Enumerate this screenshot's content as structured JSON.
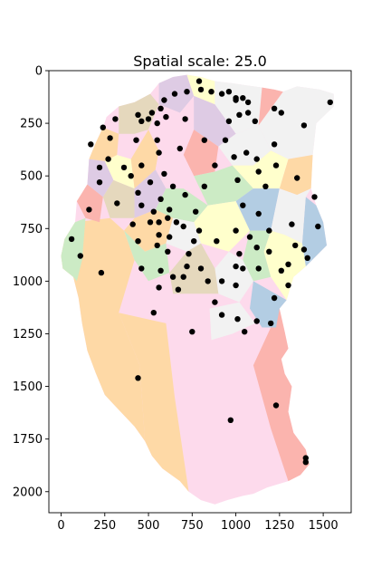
{
  "chart_data": {
    "type": "scatter",
    "title": "Spatial scale: 25.0",
    "xlabel": "",
    "ylabel": "",
    "xlim": [
      -70,
      1660
    ],
    "ylim": [
      2100,
      0
    ],
    "y_inverted": true,
    "grid": false,
    "xticks": [
      0,
      250,
      500,
      750,
      1000,
      1250,
      1500
    ],
    "yticks": [
      0,
      250,
      500,
      750,
      1000,
      1250,
      1500,
      1750,
      2000
    ],
    "xtick_labels": [
      "0",
      "250",
      "500",
      "750",
      "1000",
      "1250",
      "1500"
    ],
    "ytick_labels": [
      "0",
      "250",
      "500",
      "750",
      "1000",
      "1250",
      "1500",
      "1750",
      "2000"
    ],
    "point_color": "#000000",
    "region_palette": [
      "#fbb4ae",
      "#b3cde3",
      "#ccebc5",
      "#decbe4",
      "#fed9a6",
      "#ffffcc",
      "#e5d8bd",
      "#fddaec",
      "#f2f2f2"
    ],
    "points": [
      {
        "x": 1540,
        "y": 150
      },
      {
        "x": 1390,
        "y": 260
      },
      {
        "x": 1260,
        "y": 200
      },
      {
        "x": 1220,
        "y": 180
      },
      {
        "x": 1110,
        "y": 240
      },
      {
        "x": 1070,
        "y": 150
      },
      {
        "x": 1040,
        "y": 130
      },
      {
        "x": 1000,
        "y": 140
      },
      {
        "x": 960,
        "y": 100
      },
      {
        "x": 920,
        "y": 110
      },
      {
        "x": 860,
        "y": 100
      },
      {
        "x": 800,
        "y": 90
      },
      {
        "x": 790,
        "y": 50
      },
      {
        "x": 720,
        "y": 100
      },
      {
        "x": 650,
        "y": 110
      },
      {
        "x": 590,
        "y": 140
      },
      {
        "x": 570,
        "y": 180
      },
      {
        "x": 520,
        "y": 200
      },
      {
        "x": 500,
        "y": 230
      },
      {
        "x": 600,
        "y": 220
      },
      {
        "x": 550,
        "y": 250
      },
      {
        "x": 440,
        "y": 210
      },
      {
        "x": 310,
        "y": 230
      },
      {
        "x": 240,
        "y": 270
      },
      {
        "x": 280,
        "y": 320
      },
      {
        "x": 170,
        "y": 350
      },
      {
        "x": 460,
        "y": 240
      },
      {
        "x": 710,
        "y": 230
      },
      {
        "x": 960,
        "y": 240
      },
      {
        "x": 1020,
        "y": 210
      },
      {
        "x": 1070,
        "y": 200
      },
      {
        "x": 1000,
        "y": 130
      },
      {
        "x": 430,
        "y": 330
      },
      {
        "x": 550,
        "y": 330
      },
      {
        "x": 680,
        "y": 370
      },
      {
        "x": 820,
        "y": 330
      },
      {
        "x": 940,
        "y": 330
      },
      {
        "x": 1120,
        "y": 420
      },
      {
        "x": 1220,
        "y": 350
      },
      {
        "x": 1060,
        "y": 390
      },
      {
        "x": 990,
        "y": 410
      },
      {
        "x": 880,
        "y": 450
      },
      {
        "x": 560,
        "y": 390
      },
      {
        "x": 460,
        "y": 450
      },
      {
        "x": 590,
        "y": 490
      },
      {
        "x": 360,
        "y": 460
      },
      {
        "x": 400,
        "y": 500
      },
      {
        "x": 270,
        "y": 420
      },
      {
        "x": 220,
        "y": 460
      },
      {
        "x": 220,
        "y": 530
      },
      {
        "x": 1130,
        "y": 480
      },
      {
        "x": 1230,
        "y": 450
      },
      {
        "x": 1350,
        "y": 510
      },
      {
        "x": 1010,
        "y": 520
      },
      {
        "x": 1170,
        "y": 550
      },
      {
        "x": 820,
        "y": 550
      },
      {
        "x": 510,
        "y": 530
      },
      {
        "x": 640,
        "y": 550
      },
      {
        "x": 710,
        "y": 590
      },
      {
        "x": 570,
        "y": 610
      },
      {
        "x": 440,
        "y": 580
      },
      {
        "x": 320,
        "y": 630
      },
      {
        "x": 160,
        "y": 660
      },
      {
        "x": 460,
        "y": 640
      },
      {
        "x": 530,
        "y": 670
      },
      {
        "x": 620,
        "y": 660
      },
      {
        "x": 770,
        "y": 670
      },
      {
        "x": 1040,
        "y": 640
      },
      {
        "x": 1130,
        "y": 680
      },
      {
        "x": 1450,
        "y": 600
      },
      {
        "x": 1470,
        "y": 740
      },
      {
        "x": 1320,
        "y": 730
      },
      {
        "x": 1190,
        "y": 760
      },
      {
        "x": 1080,
        "y": 790
      },
      {
        "x": 410,
        "y": 730
      },
      {
        "x": 510,
        "y": 720
      },
      {
        "x": 560,
        "y": 720
      },
      {
        "x": 610,
        "y": 700
      },
      {
        "x": 660,
        "y": 720
      },
      {
        "x": 700,
        "y": 740
      },
      {
        "x": 790,
        "y": 760
      },
      {
        "x": 1000,
        "y": 760
      },
      {
        "x": 1120,
        "y": 840
      },
      {
        "x": 1340,
        "y": 830
      },
      {
        "x": 1390,
        "y": 850
      },
      {
        "x": 1410,
        "y": 890
      },
      {
        "x": 1190,
        "y": 860
      },
      {
        "x": 1300,
        "y": 920
      },
      {
        "x": 1260,
        "y": 950
      },
      {
        "x": 1300,
        "y": 1020
      },
      {
        "x": 1220,
        "y": 1080
      },
      {
        "x": 560,
        "y": 780
      },
      {
        "x": 620,
        "y": 790
      },
      {
        "x": 550,
        "y": 830
      },
      {
        "x": 440,
        "y": 810
      },
      {
        "x": 760,
        "y": 810
      },
      {
        "x": 890,
        "y": 810
      },
      {
        "x": 610,
        "y": 860
      },
      {
        "x": 730,
        "y": 870
      },
      {
        "x": 1020,
        "y": 870
      },
      {
        "x": 60,
        "y": 800
      },
      {
        "x": 110,
        "y": 880
      },
      {
        "x": 460,
        "y": 940
      },
      {
        "x": 570,
        "y": 950
      },
      {
        "x": 720,
        "y": 930
      },
      {
        "x": 640,
        "y": 980
      },
      {
        "x": 800,
        "y": 940
      },
      {
        "x": 1000,
        "y": 930
      },
      {
        "x": 1130,
        "y": 940
      },
      {
        "x": 1040,
        "y": 940
      },
      {
        "x": 230,
        "y": 960
      },
      {
        "x": 700,
        "y": 980
      },
      {
        "x": 920,
        "y": 1000
      },
      {
        "x": 840,
        "y": 1000
      },
      {
        "x": 1000,
        "y": 1020
      },
      {
        "x": 560,
        "y": 1030
      },
      {
        "x": 670,
        "y": 1040
      },
      {
        "x": 880,
        "y": 1100
      },
      {
        "x": 920,
        "y": 1160
      },
      {
        "x": 1010,
        "y": 1180
      },
      {
        "x": 1120,
        "y": 1190
      },
      {
        "x": 1200,
        "y": 1200
      },
      {
        "x": 1050,
        "y": 1240
      },
      {
        "x": 530,
        "y": 1150
      },
      {
        "x": 750,
        "y": 1240
      },
      {
        "x": 440,
        "y": 1460
      },
      {
        "x": 1230,
        "y": 1590
      },
      {
        "x": 970,
        "y": 1660
      },
      {
        "x": 1400,
        "y": 1840
      },
      {
        "x": 1400,
        "y": 1860
      }
    ]
  }
}
